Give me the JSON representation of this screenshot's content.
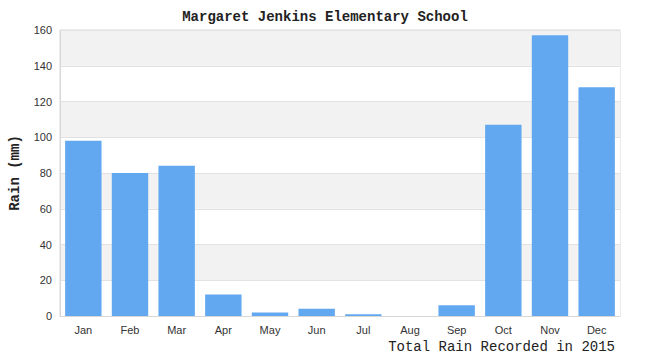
{
  "chart_data": {
    "type": "bar",
    "title": "Margaret Jenkins Elementary School",
    "x_label": "Total Rain Recorded in 2015",
    "y_label": "Rain (mm)",
    "categories": [
      "Jan",
      "Feb",
      "Mar",
      "Apr",
      "May",
      "Jun",
      "Jul",
      "Aug",
      "Sep",
      "Oct",
      "Nov",
      "Dec"
    ],
    "values": [
      98,
      80,
      84,
      12,
      2,
      4,
      1,
      0,
      6,
      107,
      157,
      128
    ],
    "color": "#62a8f0",
    "ylim": [
      0,
      160
    ],
    "yticks": [
      0,
      20,
      40,
      60,
      80,
      100,
      120,
      140,
      160
    ],
    "grid": true
  }
}
